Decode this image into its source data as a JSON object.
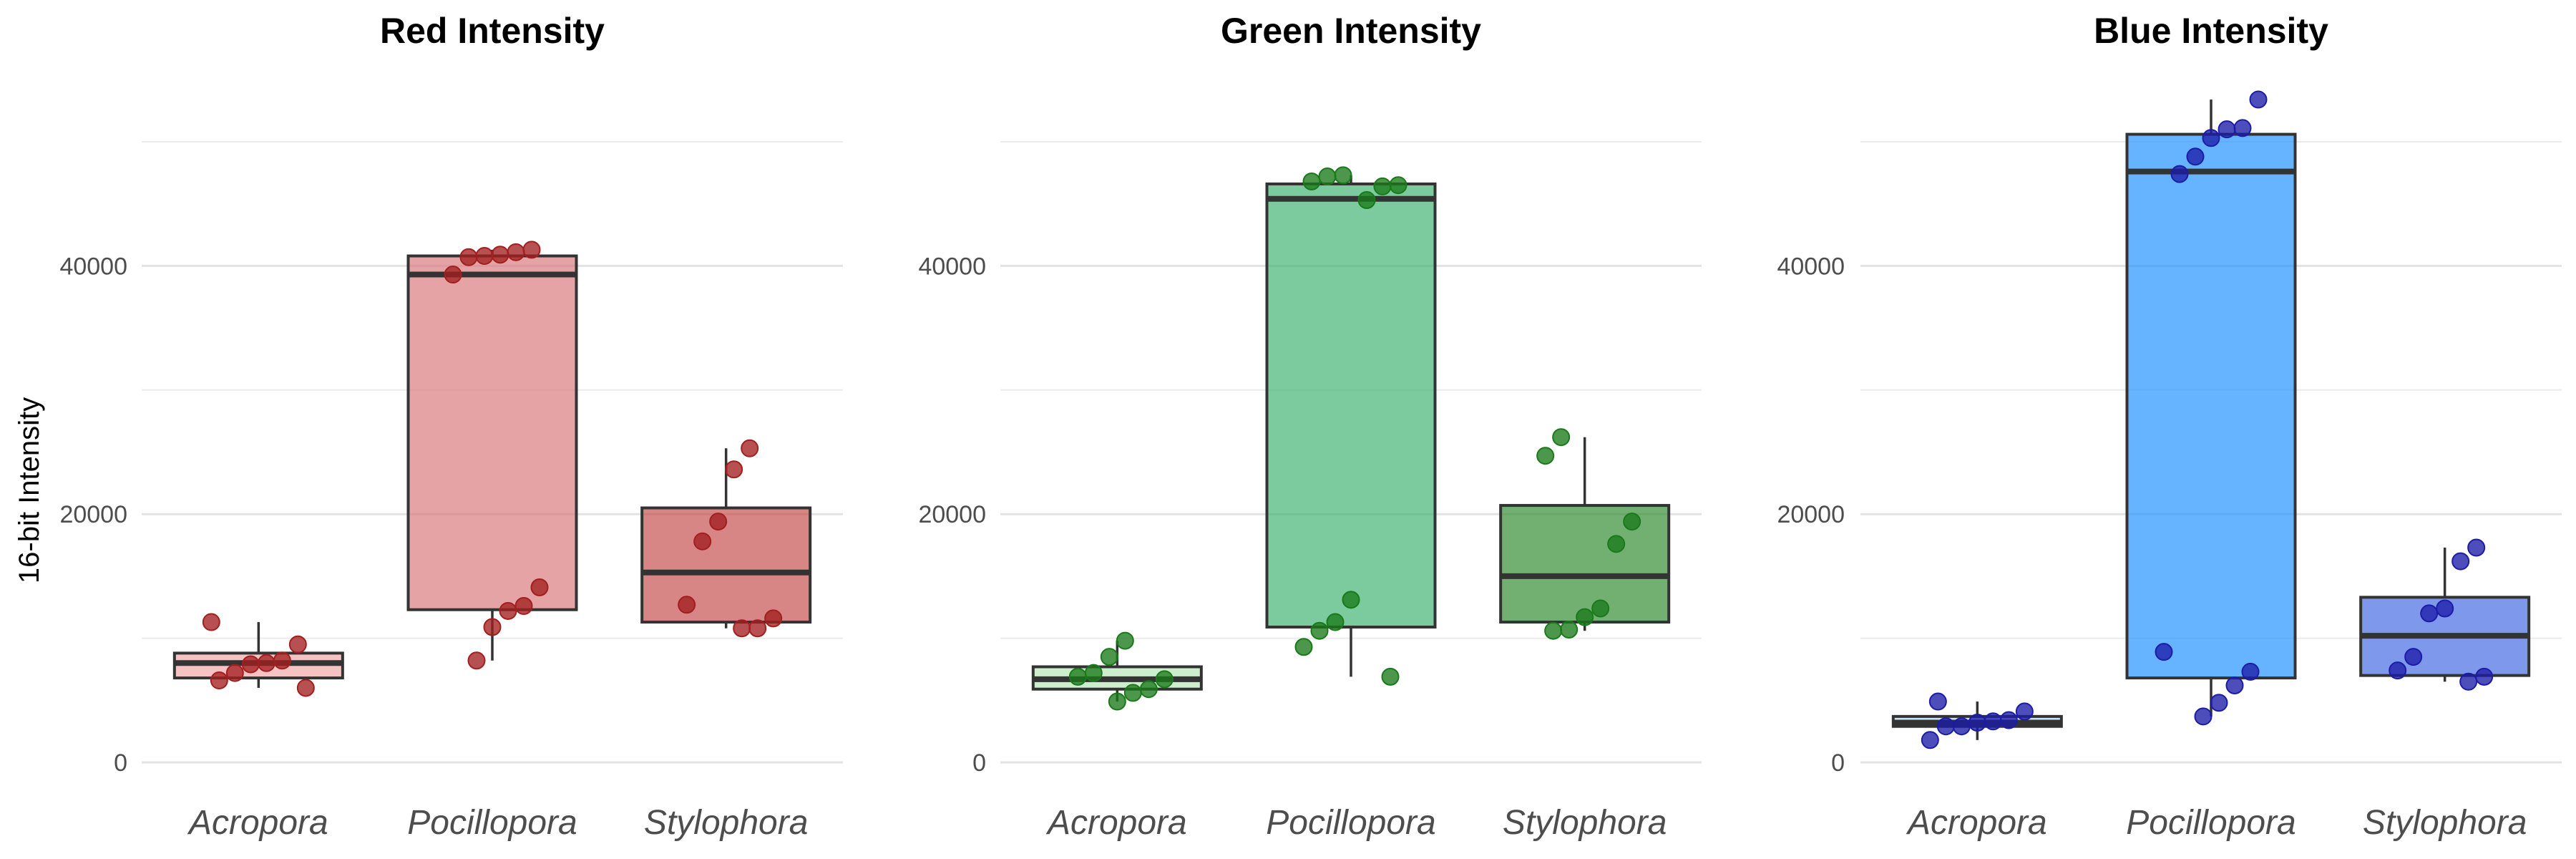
{
  "chart_data": [
    {
      "type": "box",
      "title": "Red Intensity",
      "ylabel": "16-bit Intensity",
      "xlabel": "",
      "categories": [
        "Acropora",
        "Pocillopora",
        "Stylophora"
      ],
      "ylim": [
        0,
        50000
      ],
      "yticks": [
        0,
        20000,
        40000
      ],
      "grid": true,
      "legend": "none",
      "point_color": "#a31f1f",
      "box_colors": [
        "#f2a7a7",
        "#d9787b",
        "#c44b4b"
      ],
      "boxes": [
        {
          "category": "Acropora",
          "q1": 6800,
          "median": 8000,
          "q3": 8800,
          "whisker_low": 6000,
          "whisker_high": 11300
        },
        {
          "category": "Pocillopora",
          "q1": 12300,
          "median": 39300,
          "q3": 40800,
          "whisker_low": 8200,
          "whisker_high": 41300
        },
        {
          "category": "Stylophora",
          "q1": 11300,
          "median": 15300,
          "q3": 20500,
          "whisker_low": 10800,
          "whisker_high": 25300
        }
      ],
      "points": [
        {
          "category": "Acropora",
          "values": [
            11300,
            9500,
            8200,
            8000,
            7900,
            7200,
            6600,
            6000
          ]
        },
        {
          "category": "Pocillopora",
          "values": [
            41300,
            41100,
            40900,
            40800,
            40700,
            39300,
            14100,
            12600,
            12200,
            10900,
            8200
          ]
        },
        {
          "category": "Stylophora",
          "values": [
            25300,
            23600,
            19400,
            17800,
            12700,
            11600,
            10800,
            10800
          ]
        }
      ]
    },
    {
      "type": "box",
      "title": "Green Intensity",
      "xlabel": "",
      "categories": [
        "Acropora",
        "Pocillopora",
        "Stylophora"
      ],
      "ylim": [
        0,
        50000
      ],
      "yticks": [
        0,
        20000,
        40000
      ],
      "grid": true,
      "legend": "none",
      "point_color": "#1a7a1a",
      "box_colors": [
        "#b5e6b5",
        "#3cb371",
        "#2e8b2e"
      ],
      "boxes": [
        {
          "category": "Acropora",
          "q1": 5900,
          "median": 6700,
          "q3": 7700,
          "whisker_low": 4900,
          "whisker_high": 9800
        },
        {
          "category": "Pocillopora",
          "q1": 10900,
          "median": 45400,
          "q3": 46600,
          "whisker_low": 6900,
          "whisker_high": 47300
        },
        {
          "category": "Stylophora",
          "q1": 11300,
          "median": 15000,
          "q3": 20700,
          "whisker_low": 10600,
          "whisker_high": 26200
        }
      ],
      "points": [
        {
          "category": "Acropora",
          "values": [
            9800,
            8500,
            7200,
            6900,
            6700,
            5900,
            5600,
            4900
          ]
        },
        {
          "category": "Pocillopora",
          "values": [
            47300,
            47200,
            46800,
            46500,
            46400,
            45300,
            13100,
            11300,
            10600,
            9300,
            6900
          ]
        },
        {
          "category": "Stylophora",
          "values": [
            26200,
            24700,
            19400,
            17600,
            12400,
            11700,
            10700,
            10600
          ]
        }
      ]
    },
    {
      "type": "box",
      "title": "Blue Intensity",
      "xlabel": "",
      "categories": [
        "Acropora",
        "Pocillopora",
        "Stylophora"
      ],
      "ylim": [
        0,
        50000
      ],
      "yticks": [
        0,
        20000,
        40000
      ],
      "grid": true,
      "legend": "none",
      "point_color": "#1c1ca8",
      "box_colors": [
        "#b0d8f0",
        "#1e90ff",
        "#4169e1"
      ],
      "boxes": [
        {
          "category": "Acropora",
          "q1": 2900,
          "median": 3200,
          "q3": 3700,
          "whisker_low": 1800,
          "whisker_high": 4900
        },
        {
          "category": "Pocillopora",
          "q1": 6800,
          "median": 47600,
          "q3": 50600,
          "whisker_low": 3700,
          "whisker_high": 53400
        },
        {
          "category": "Stylophora",
          "q1": 7000,
          "median": 10200,
          "q3": 13300,
          "whisker_low": 6500,
          "whisker_high": 17300
        }
      ],
      "points": [
        {
          "category": "Acropora",
          "values": [
            4900,
            4100,
            3400,
            3300,
            3200,
            2900,
            2900,
            1800
          ]
        },
        {
          "category": "Pocillopora",
          "values": [
            53400,
            51100,
            51000,
            50300,
            48800,
            47400,
            8900,
            7300,
            6200,
            4800,
            3700
          ]
        },
        {
          "category": "Stylophora",
          "values": [
            17300,
            16200,
            12400,
            12000,
            8500,
            7400,
            6900,
            6500
          ]
        }
      ]
    }
  ]
}
